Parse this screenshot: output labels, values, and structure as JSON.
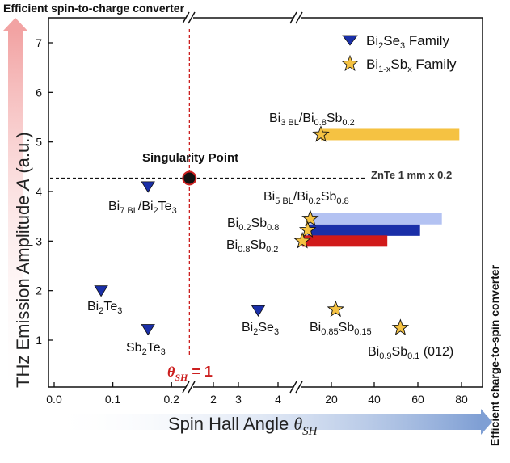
{
  "titles": {
    "top": "Efficient spin-to-charge converter",
    "right": "Efficient charge-to-spin converter"
  },
  "chart_data": {
    "type": "scatter",
    "xlabel": "Spin Hall Angle θSH",
    "ylabel": "THz Emission Amplitude A (a.u.)",
    "ylim": [
      0.5,
      7.5
    ],
    "y_ticks": [
      "1",
      "2",
      "3",
      "4",
      "5",
      "6",
      "7"
    ],
    "x_axis_broken": true,
    "x_segments": [
      {
        "range": [
          0,
          0.23
        ],
        "ticks": [
          "0.0",
          "0.1",
          "0.2"
        ]
      },
      {
        "range": [
          0.23,
          4.6
        ],
        "ticks": [
          "2",
          "3",
          "4"
        ]
      },
      {
        "range": [
          6.5,
          80
        ],
        "ticks": [
          "20",
          "40",
          "60",
          "80"
        ]
      }
    ],
    "legend": {
      "position": "top-right",
      "entries": [
        {
          "marker": "triangle-down",
          "color": "#1a2fa8",
          "label": "Bi2Se3 Family"
        },
        {
          "marker": "star",
          "color": "#f5c242",
          "label": "Bi1-xSbx Family"
        }
      ]
    },
    "series": [
      {
        "name": "Bi2Se3 Family",
        "marker": "triangle-down",
        "color": "#1a2fa8",
        "points": [
          {
            "label": "Bi7 BL/Bi2Te3",
            "x": 0.16,
            "y": 4.1
          },
          {
            "label": "Bi2Te3",
            "x": 0.08,
            "y": 2.0
          },
          {
            "label": "Sb2Te3",
            "x": 0.16,
            "y": 1.22
          },
          {
            "label": "Bi2Se3",
            "x": 3.5,
            "y": 1.6
          }
        ]
      },
      {
        "name": "Bi1-xSbx Family",
        "marker": "star",
        "color": "#f5c242",
        "points": [
          {
            "label": "Bi3 BL/Bi0.8Sb0.2",
            "x": 16,
            "x_end": 79,
            "y": 5.15,
            "bar_color": "#f5c242"
          },
          {
            "label": "Bi5 BL/Bi0.2Sb0.8",
            "x": 12,
            "x_end": 71,
            "y": 3.45,
            "bar_color": "#b3c2f2"
          },
          {
            "label": "Bi0.2Sb0.8",
            "x": 11,
            "x_end": 61,
            "y": 3.22,
            "bar_color": "#1a2fa8"
          },
          {
            "label": "Bi0.8Sb0.2",
            "x": 9,
            "x_end": 46,
            "y": 3.0,
            "bar_color": "#d11a1a"
          },
          {
            "label": "Bi0.85Sb0.15",
            "x": 22,
            "y": 1.62
          },
          {
            "label": "Bi0.9Sb0.1 (012)",
            "x": 52,
            "y": 1.25
          }
        ]
      }
    ],
    "annotations": {
      "singularity_label": "Singularity Point",
      "singularity": {
        "x": 0.25,
        "y": 4.27
      },
      "reference_line": {
        "y": 4.27,
        "label": "ZnTe 1 mm x 0.2"
      },
      "theta_line_label": "θSH = 1"
    }
  }
}
